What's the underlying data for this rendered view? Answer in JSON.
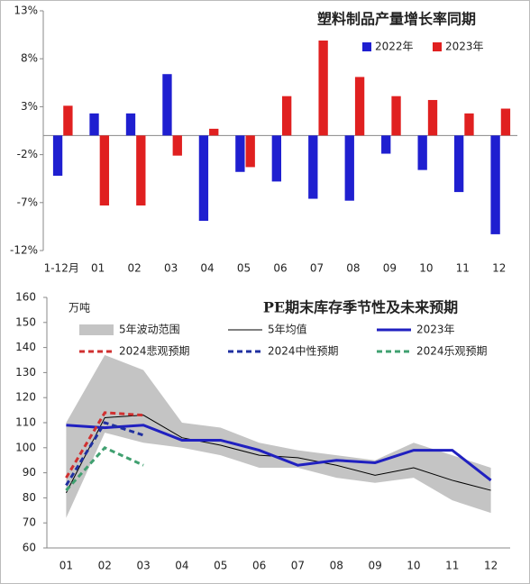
{
  "chart_data": [
    {
      "type": "bar",
      "title": "塑料制品产量增长率同期",
      "categories": [
        "1-12月",
        "01",
        "02",
        "03",
        "04",
        "05",
        "06",
        "07",
        "08",
        "09",
        "10",
        "11",
        "12"
      ],
      "series": [
        {
          "name": "2022年",
          "color": "#1f1fd0",
          "values": [
            -4.2,
            2.3,
            2.3,
            6.4,
            -8.9,
            -3.8,
            -4.8,
            -6.6,
            -6.8,
            -1.9,
            -3.6,
            -5.9,
            -10.3
          ]
        },
        {
          "name": "2023年",
          "color": "#e02020",
          "values": [
            3.1,
            -7.3,
            -7.3,
            -2.1,
            0.7,
            -3.3,
            4.1,
            9.9,
            6.1,
            4.1,
            3.7,
            2.3,
            2.8
          ]
        }
      ],
      "ylim": [
        -12,
        13
      ],
      "yticks": [
        {
          "value": 13,
          "label": "13%"
        },
        {
          "value": 8,
          "label": "8%"
        },
        {
          "value": 3,
          "label": "3%"
        },
        {
          "value": -2,
          "label": "-2%"
        },
        {
          "value": -7,
          "label": "-7%"
        },
        {
          "value": -12,
          "label": "-12%"
        }
      ],
      "grid": false
    },
    {
      "type": "line",
      "title": "PE期末库存季节性及未来预期",
      "y_label": "万吨",
      "categories": [
        "01",
        "02",
        "03",
        "04",
        "05",
        "06",
        "07",
        "08",
        "09",
        "10",
        "11",
        "12"
      ],
      "band": {
        "name": "5年波动范围",
        "color": "#c4c4c4",
        "upper": [
          110,
          137,
          131,
          110,
          108,
          102,
          99,
          97,
          95,
          102,
          97,
          92
        ],
        "lower": [
          72,
          106,
          102,
          100,
          97,
          92,
          92,
          88,
          86,
          88,
          79,
          74
        ]
      },
      "series": [
        {
          "name": "5年均值",
          "color": "#000000",
          "width": 1,
          "dash": false,
          "values": [
            82,
            112,
            113,
            104,
            101,
            97,
            96,
            93,
            89,
            92,
            87,
            83
          ]
        },
        {
          "name": "2023年",
          "color": "#2020c0",
          "width": 3,
          "dash": false,
          "values": [
            109,
            108,
            109,
            103,
            103,
            99,
            93,
            95,
            94,
            99,
            99,
            87
          ]
        },
        {
          "name": "2024悲观预期",
          "color": "#d03030",
          "width": 3,
          "dash": true,
          "values": [
            88,
            114,
            113,
            null,
            null,
            null,
            null,
            null,
            null,
            null,
            null,
            null
          ]
        },
        {
          "name": "2024中性预期",
          "color": "#2030a0",
          "width": 3,
          "dash": true,
          "values": [
            85,
            110,
            105,
            null,
            null,
            null,
            null,
            null,
            null,
            null,
            null,
            null
          ]
        },
        {
          "name": "2024乐观预期",
          "color": "#40a070",
          "width": 3,
          "dash": true,
          "values": [
            83,
            100,
            93,
            null,
            null,
            null,
            null,
            null,
            null,
            null,
            null,
            null
          ]
        }
      ],
      "ylim": [
        60,
        160
      ],
      "yticks": [
        60,
        70,
        80,
        90,
        100,
        110,
        120,
        130,
        140,
        150,
        160
      ],
      "grid": false
    }
  ]
}
